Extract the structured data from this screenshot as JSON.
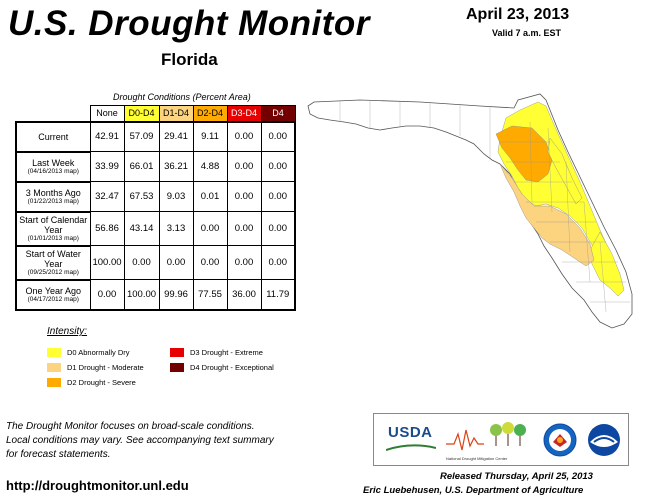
{
  "header": {
    "title": "U.S. Drought Monitor",
    "date": "April 23, 2013",
    "valid": "Valid 7 a.m. EST",
    "state": "Florida"
  },
  "table": {
    "caption": "Drought Conditions (Percent Area)",
    "columns": [
      "None",
      "D0-D4",
      "D1-D4",
      "D2-D4",
      "D3-D4",
      "D4"
    ],
    "rows": [
      {
        "label": "Current",
        "sub": "",
        "values": [
          "42.91",
          "57.09",
          "29.41",
          "9.11",
          "0.00",
          "0.00"
        ]
      },
      {
        "label": "Last Week",
        "sub": "(04/16/2013 map)",
        "values": [
          "33.99",
          "66.01",
          "36.21",
          "4.88",
          "0.00",
          "0.00"
        ]
      },
      {
        "label": "3 Months Ago",
        "sub": "(01/22/2013 map)",
        "values": [
          "32.47",
          "67.53",
          "9.03",
          "0.01",
          "0.00",
          "0.00"
        ]
      },
      {
        "label": "Start of Calendar Year",
        "sub": "(01/01/2013 map)",
        "values": [
          "56.86",
          "43.14",
          "3.13",
          "0.00",
          "0.00",
          "0.00"
        ]
      },
      {
        "label": "Start of Water Year",
        "sub": "(09/25/2012 map)",
        "values": [
          "100.00",
          "0.00",
          "0.00",
          "0.00",
          "0.00",
          "0.00"
        ]
      },
      {
        "label": "One Year Ago",
        "sub": "(04/17/2012 map)",
        "values": [
          "0.00",
          "100.00",
          "99.96",
          "77.55",
          "36.00",
          "11.79"
        ]
      }
    ]
  },
  "legend": {
    "title": "Intensity:",
    "items": [
      {
        "label": "D0 Abnormally Dry",
        "color": "#ffff33"
      },
      {
        "label": "D1 Drought - Moderate",
        "color": "#fcd37f"
      },
      {
        "label": "D2 Drought - Severe",
        "color": "#ffaa00"
      },
      {
        "label": "D3 Drought - Extreme",
        "color": "#e60000"
      },
      {
        "label": "D4 Drought - Exceptional",
        "color": "#730000"
      }
    ]
  },
  "footer": {
    "note_lines": [
      "The Drought Monitor focuses on broad-scale conditions.",
      "Local conditions may vary. See accompanying text summary",
      "for forecast statements."
    ],
    "url": "http://droughtmonitor.unl.edu",
    "released": "Released Thursday, April 25, 2013",
    "author": "Eric Luebehusen, U.S. Department of Agriculture"
  },
  "logos": {
    "usda": "USDA",
    "ndmc": "National Drought Mitigation Center"
  }
}
